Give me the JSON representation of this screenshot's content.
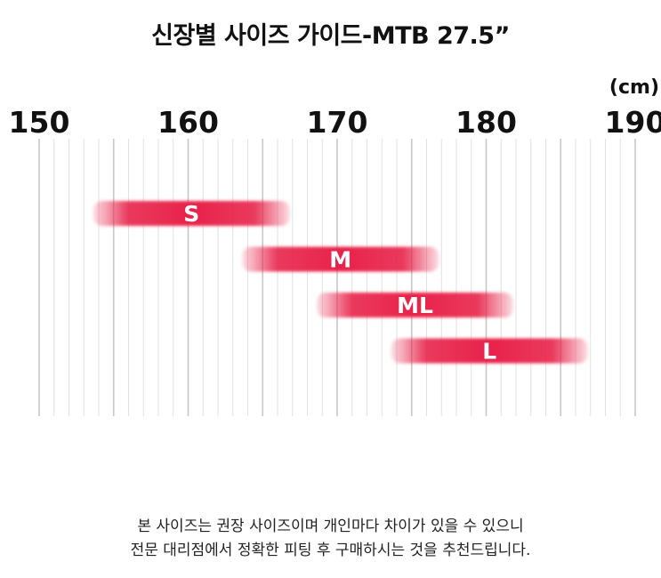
{
  "title": "신장별 사이즈 가이드-MTB 27.5”",
  "unit": "(cm)",
  "notes": [
    "본 사이즈는 권장 사이즈이며 개인마다 차이가 있을 수 있으니",
    "전문 대리점에서 정확한 피팅 후 구매하시는 것을 추천드립니다."
  ],
  "colors": {
    "bar": "#e8234a",
    "grid_major": "#c8c8c8",
    "grid_minor": "#e2e2e2",
    "text": "#111111"
  },
  "chart_data": {
    "type": "bar",
    "orientation": "horizontal-range",
    "x_ticks": [
      "150",
      "160",
      "170",
      "180",
      "190"
    ],
    "xlim": [
      150,
      190
    ],
    "minor_step": 1,
    "grid": true,
    "categories": [
      "S",
      "M",
      "ML",
      "L"
    ],
    "ranges": [
      {
        "label": "S",
        "start": 155,
        "end": 167
      },
      {
        "label": "M",
        "start": 165,
        "end": 177
      },
      {
        "label": "ML",
        "start": 170,
        "end": 182
      },
      {
        "label": "L",
        "start": 175,
        "end": 187
      }
    ]
  }
}
